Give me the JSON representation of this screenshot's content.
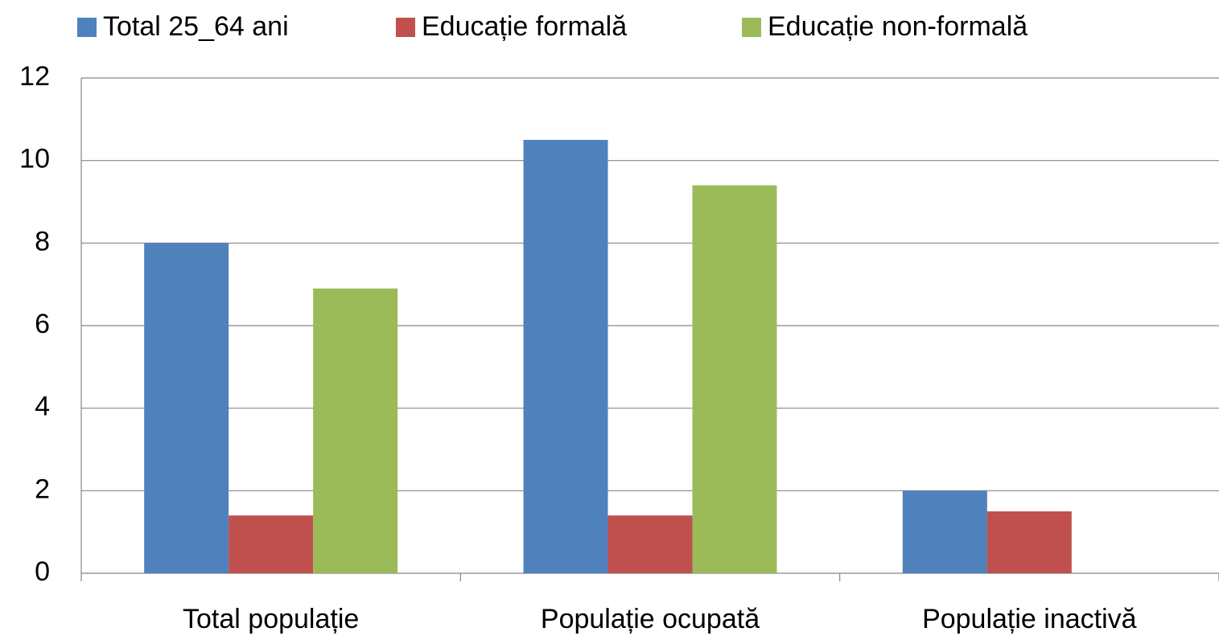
{
  "chart_data": {
    "type": "bar",
    "categories": [
      "Total populație",
      "Populație ocupată",
      "Populație inactivă"
    ],
    "series": [
      {
        "name": "Total 25_64 ani",
        "color": "#4f81bd",
        "values": [
          8,
          10.5,
          2
        ]
      },
      {
        "name": "Educație formală",
        "color": "#c0504d",
        "values": [
          1.4,
          1.4,
          1.5
        ]
      },
      {
        "name": "Educație non-formală",
        "color": "#9bbb59",
        "values": [
          6.9,
          9.4,
          null
        ]
      }
    ],
    "ylim": [
      0,
      12
    ],
    "yticks": [
      0,
      2,
      4,
      6,
      8,
      10,
      12
    ],
    "grid": true,
    "legend": "top"
  }
}
